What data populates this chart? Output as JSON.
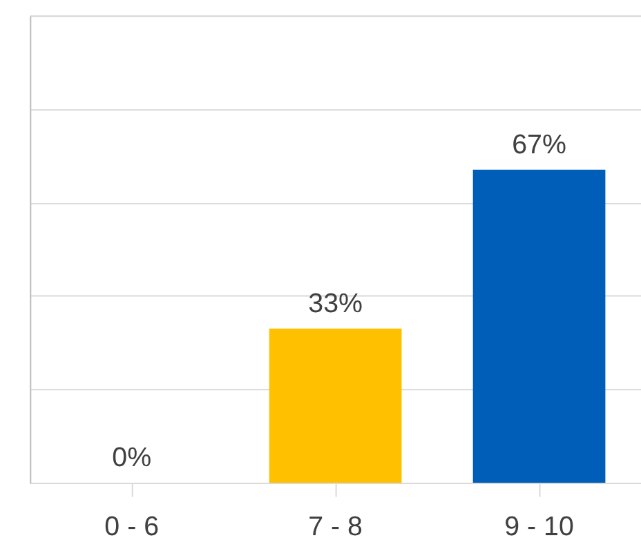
{
  "chart_data": {
    "type": "bar",
    "categories": [
      "0 - 6",
      "7 - 8",
      "9 - 10"
    ],
    "values": [
      0,
      33,
      67
    ],
    "colors": [
      "#a5a5a5",
      "#ffc000",
      "#005eb8"
    ],
    "value_labels": [
      "0%",
      "33%",
      "67%"
    ],
    "ylim": [
      0,
      100
    ],
    "yticks": [
      {
        "value": 0,
        "label": null
      },
      {
        "value": 20,
        "label": null
      },
      {
        "value": 40,
        "label": null
      },
      {
        "value": 60,
        "label": null
      },
      {
        "value": 80,
        "label": null
      },
      {
        "value": 100,
        "label": null
      }
    ],
    "grid": "y",
    "tick_labels": "x"
  }
}
